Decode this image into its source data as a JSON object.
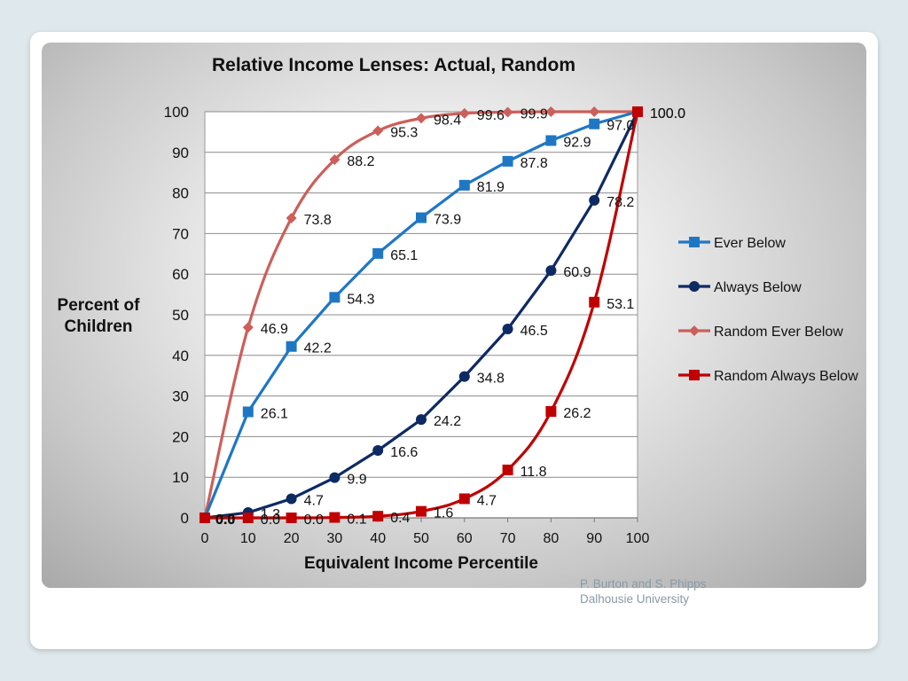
{
  "footer": {
    "authors": "P. Burton and S. Phipps",
    "affiliation": "Dalhousie University"
  },
  "chart_data": {
    "type": "line",
    "title": "Relative Income Lenses: Actual, Random",
    "xlabel": "Equivalent Income Percentile",
    "ylabel_lines": [
      "Percent of",
      "Children"
    ],
    "x_ticks": [
      0,
      10,
      20,
      30,
      40,
      50,
      60,
      70,
      80,
      90,
      100
    ],
    "y_ticks": [
      0,
      10,
      20,
      30,
      40,
      50,
      60,
      70,
      80,
      90,
      100
    ],
    "xlim": [
      0,
      100
    ],
    "ylim": [
      0,
      100
    ],
    "grid": "horizontal",
    "legend_position": "right",
    "series": [
      {
        "name": "Ever Below",
        "color": "#1f77c4",
        "marker": "square",
        "smooth": false,
        "x": [
          0,
          10,
          20,
          30,
          40,
          50,
          60,
          70,
          80,
          90,
          100
        ],
        "y": [
          0,
          26.1,
          42.2,
          54.3,
          65.1,
          73.9,
          81.9,
          87.8,
          92.9,
          97.0,
          100.0
        ],
        "labels": [
          "0.0",
          "26.1",
          "42.2",
          "54.3",
          "65.1",
          "73.9",
          "81.9",
          "87.8",
          "92.9",
          "97.0",
          "100.0"
        ]
      },
      {
        "name": "Always Below",
        "color": "#0d2a63",
        "marker": "circle",
        "smooth": false,
        "x": [
          0,
          10,
          20,
          30,
          40,
          50,
          60,
          70,
          80,
          90,
          100
        ],
        "y": [
          0,
          1.3,
          4.7,
          9.9,
          16.6,
          24.2,
          34.8,
          46.5,
          60.9,
          78.2,
          100.0
        ],
        "labels": [
          "0.0",
          "1.3",
          "4.7",
          "9.9",
          "16.6",
          "24.2",
          "34.8",
          "46.5",
          "60.9",
          "78.2",
          ""
        ]
      },
      {
        "name": "Random Ever Below",
        "color": "#cc5f5a",
        "marker": "diamond",
        "smooth": true,
        "x": [
          0,
          10,
          20,
          30,
          40,
          50,
          60,
          70,
          80,
          90,
          100
        ],
        "y": [
          0,
          46.9,
          73.8,
          88.2,
          95.3,
          98.4,
          99.6,
          99.9,
          100,
          100,
          100
        ],
        "labels": [
          "0.0",
          "46.9",
          "73.8",
          "88.2",
          "95.3",
          "98.4",
          "99.6",
          "99.9",
          "",
          "",
          ""
        ]
      },
      {
        "name": "Random Always Below",
        "color": "#c00000",
        "marker": "square",
        "smooth": true,
        "x": [
          0,
          10,
          20,
          30,
          40,
          50,
          60,
          70,
          80,
          90,
          100
        ],
        "y": [
          0,
          0,
          0,
          0.1,
          0.4,
          1.6,
          4.7,
          11.8,
          26.2,
          53.1,
          100.0
        ],
        "labels": [
          "0.0",
          "0.0",
          "0.0",
          "0.1",
          "0.4",
          "1.6",
          "4.7",
          "11.8",
          "26.2",
          "53.1",
          "100.0"
        ]
      }
    ]
  }
}
